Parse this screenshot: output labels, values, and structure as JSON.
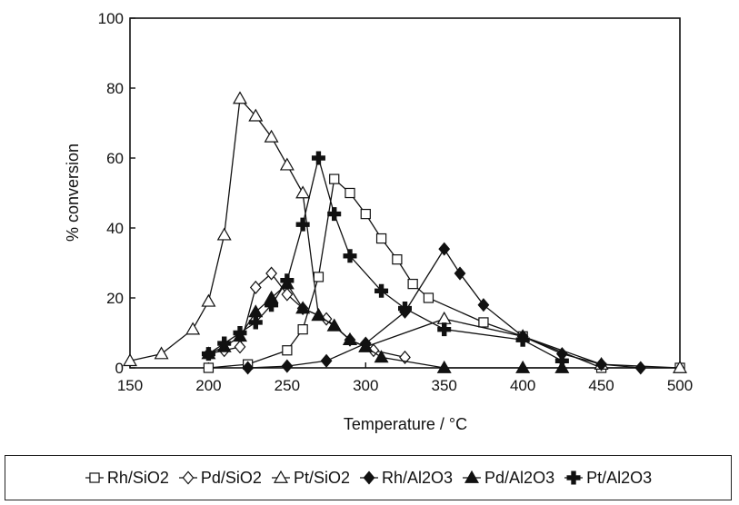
{
  "chart_data": {
    "type": "line",
    "title": "",
    "xlabel": "Temperature / °C",
    "ylabel": "% conversion",
    "xlim": [
      150,
      500
    ],
    "ylim": [
      0,
      100
    ],
    "xticks": [
      "150",
      "200",
      "250",
      "300",
      "350",
      "400",
      "450",
      "500"
    ],
    "yticks": [
      "0",
      "20",
      "40",
      "60",
      "80",
      "100"
    ],
    "grid": false,
    "legend_position": "bottom",
    "series": [
      {
        "name": "Rh/SiO2",
        "marker": "square",
        "filled": false,
        "x": [
          200,
          225,
          250,
          260,
          270,
          280,
          290,
          300,
          310,
          320,
          330,
          340,
          375,
          400,
          450,
          500
        ],
        "y": [
          0,
          1,
          5,
          11,
          26,
          54,
          50,
          44,
          37,
          31,
          24,
          20,
          13,
          9,
          0,
          0
        ]
      },
      {
        "name": "Pd/SiO2",
        "marker": "diamond",
        "filled": false,
        "x": [
          200,
          210,
          220,
          230,
          240,
          250,
          260,
          275,
          290,
          305,
          325
        ],
        "y": [
          4,
          5,
          6,
          23,
          27,
          21,
          17,
          14,
          8,
          5,
          3
        ]
      },
      {
        "name": "Pt/SiO2",
        "marker": "triangle",
        "filled": false,
        "x": [
          150,
          170,
          190,
          200,
          210,
          220,
          230,
          240,
          250,
          260,
          270,
          280,
          290,
          300,
          350,
          400,
          450,
          500
        ],
        "y": [
          2,
          4,
          11,
          19,
          38,
          77,
          72,
          66,
          58,
          50,
          15,
          12,
          8,
          6,
          14,
          9,
          1,
          0
        ]
      },
      {
        "name": "Rh/Al2O3",
        "marker": "diamond",
        "filled": true,
        "x": [
          225,
          250,
          275,
          300,
          325,
          350,
          360,
          375,
          400,
          425,
          450,
          475
        ],
        "y": [
          0,
          0.5,
          2,
          7,
          16,
          34,
          27,
          18,
          9,
          4,
          1,
          0
        ]
      },
      {
        "name": "Pd/Al2O3",
        "marker": "triangle",
        "filled": true,
        "x": [
          200,
          210,
          220,
          230,
          240,
          250,
          260,
          270,
          280,
          290,
          300,
          310,
          350,
          400,
          425
        ],
        "y": [
          4,
          6,
          9,
          16,
          20,
          24,
          17,
          15,
          12,
          8,
          6,
          3,
          0,
          0,
          0
        ]
      },
      {
        "name": "Pt/Al2O3",
        "marker": "plus",
        "filled": true,
        "x": [
          200,
          210,
          220,
          230,
          240,
          250,
          260,
          270,
          280,
          290,
          310,
          325,
          350,
          400,
          425
        ],
        "y": [
          4,
          7,
          10,
          13,
          18,
          25,
          41,
          60,
          44,
          32,
          22,
          17,
          11,
          8,
          2
        ]
      }
    ]
  }
}
